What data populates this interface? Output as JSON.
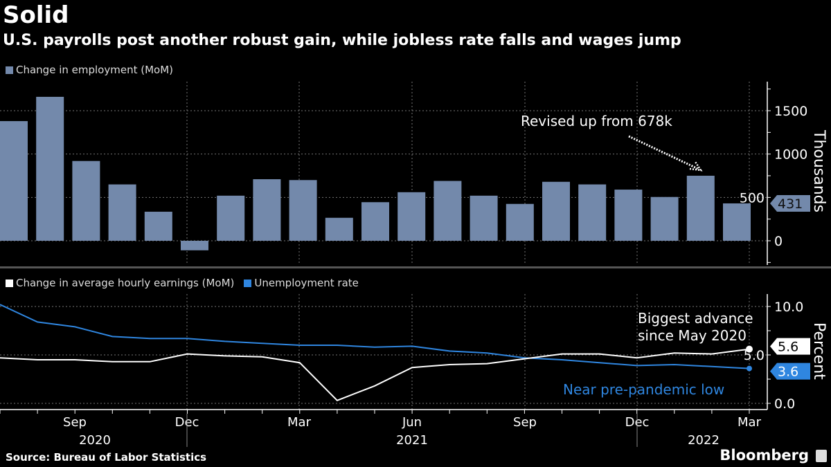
{
  "title": "Solid",
  "subtitle": "U.S. payrolls post another robust gain, while jobless rate falls and wages jump",
  "source": "Source: Bureau of Labor Statistics",
  "brand": "Bloomberg",
  "colors": {
    "bars": "#7389ab",
    "earnings": "#ffffff",
    "unemployment": "#2f86e0"
  },
  "chart_data": [
    {
      "type": "bar",
      "legend": "Change in employment (MoM)",
      "ylabel": "Thousands",
      "ylim": [
        -250,
        1800
      ],
      "yticks": [
        "0",
        "500",
        "1000",
        "1500"
      ],
      "grid": true,
      "categories": [
        "Jul 2020",
        "Aug 2020",
        "Sep 2020",
        "Oct 2020",
        "Nov 2020",
        "Dec 2020",
        "Jan 2021",
        "Feb 2021",
        "Mar 2021",
        "Apr 2021",
        "May 2021",
        "Jun 2021",
        "Jul 2021",
        "Aug 2021",
        "Sep 2021",
        "Oct 2021",
        "Nov 2021",
        "Dec 2021",
        "Jan 2022",
        "Feb 2022",
        "Mar 2022"
      ],
      "values": [
        1380,
        1660,
        920,
        650,
        335,
        -110,
        520,
        710,
        700,
        265,
        445,
        560,
        690,
        520,
        425,
        680,
        650,
        590,
        505,
        750,
        431
      ],
      "last_value_label": "431",
      "annotation": "Revised up from 678k"
    },
    {
      "type": "line",
      "ylabel": "Percent",
      "ylim": [
        -0.7,
        11
      ],
      "yticks": [
        "0.0",
        "5.0",
        "10.0"
      ],
      "grid": true,
      "x": [
        "Jul 2020",
        "Aug 2020",
        "Sep 2020",
        "Oct 2020",
        "Nov 2020",
        "Dec 2020",
        "Jan 2021",
        "Feb 2021",
        "Mar 2021",
        "Apr 2021",
        "May 2021",
        "Jun 2021",
        "Jul 2021",
        "Aug 2021",
        "Sep 2021",
        "Oct 2021",
        "Nov 2021",
        "Dec 2021",
        "Jan 2022",
        "Feb 2022",
        "Mar 2022"
      ],
      "xtick_labels": [
        "Sep",
        "Dec",
        "Mar",
        "Jun",
        "Sep",
        "Dec",
        "Mar"
      ],
      "year_labels": [
        "2020",
        "2021",
        "2022"
      ],
      "series": [
        {
          "name": "Change in average hourly earnings (MoM)",
          "values": [
            4.7,
            4.5,
            4.5,
            4.3,
            4.3,
            5.1,
            4.9,
            4.8,
            4.2,
            0.3,
            1.8,
            3.7,
            4.0,
            4.1,
            4.6,
            5.1,
            5.1,
            4.7,
            5.2,
            5.1,
            5.6
          ],
          "last_label": "5.6"
        },
        {
          "name": "Unemployment rate",
          "values": [
            10.2,
            8.4,
            7.9,
            6.9,
            6.7,
            6.7,
            6.4,
            6.2,
            6.0,
            6.0,
            5.8,
            5.9,
            5.4,
            5.2,
            4.7,
            4.5,
            4.2,
            3.9,
            4.0,
            3.8,
            3.6
          ],
          "last_label": "3.6"
        }
      ],
      "annotations": [
        "Biggest advance",
        "since May 2020",
        "Near pre-pandemic low"
      ]
    }
  ]
}
